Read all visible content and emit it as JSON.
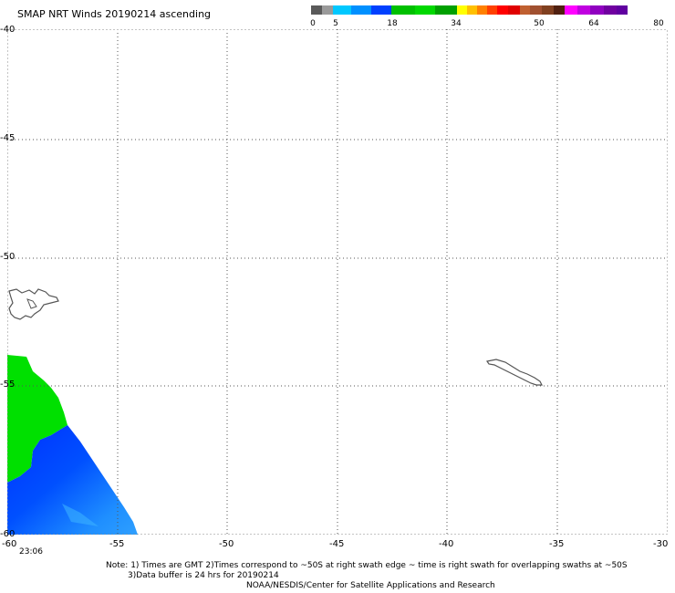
{
  "title": "SMAP NRT Winds 20190214 ascending",
  "colorbar": {
    "labels": [
      "0",
      "5",
      "18",
      "34",
      "50",
      "64",
      "80"
    ]
  },
  "axes": {
    "x_ticks": [
      "-60",
      "-55",
      "-50",
      "-45",
      "-40",
      "-35",
      "-30"
    ],
    "y_ticks": [
      "-40",
      "-45",
      "-50",
      "-55",
      "-60"
    ]
  },
  "swath": {
    "time_label": "23:06",
    "wind_colors": {
      "low_blue": "#1f8fff",
      "mid_blue": "#0030ff",
      "green": "#00e000"
    }
  },
  "notes": {
    "line1": "Note: 1) Times are GMT 2)Times correspond to ~50S at right swath edge ~ time is right swath for overlapping swaths at ~50S",
    "line2": "3)Data buffer is 24 hrs for 20190214",
    "line3": "NOAA/NESDIS/Center for Satellite Applications and Research"
  }
}
